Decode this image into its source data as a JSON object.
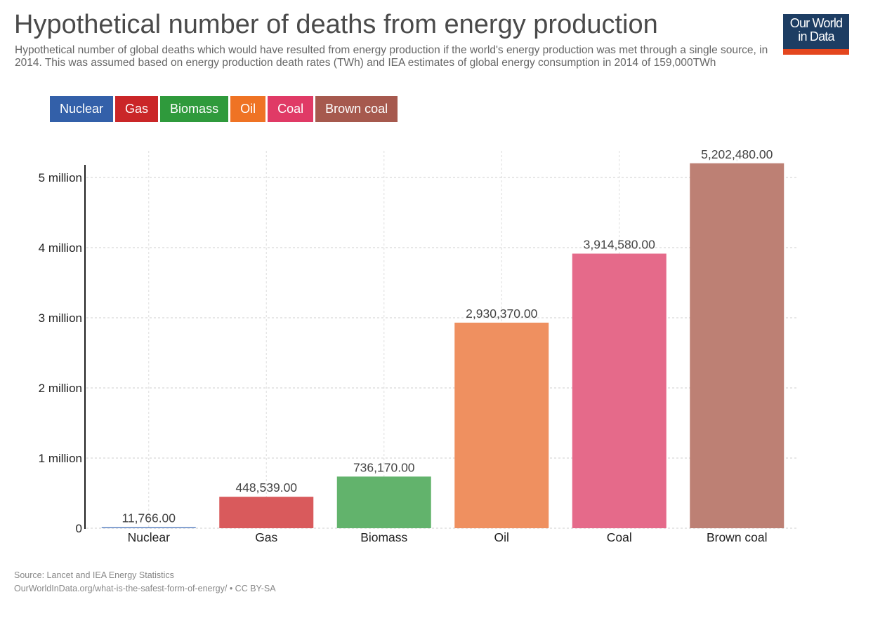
{
  "header": {
    "title": "Hypothetical number of deaths from energy production",
    "subtitle": "Hypothetical number of global deaths which would have resulted from energy production if the world's energy production was met through a single source, in 2014. This was assumed based on energy production death rates (TWh) and IEA estimates of global energy consumption in 2014 of 159,000TWh",
    "logo_line1": "Our World",
    "logo_line2": "in Data"
  },
  "colors": {
    "logo_bg": "#1d3d63",
    "logo_accent": "#e4461e"
  },
  "legend": [
    {
      "label": "Nuclear",
      "color": "#3360a9"
    },
    {
      "label": "Gas",
      "color": "#ca2628"
    },
    {
      "label": "Biomass",
      "color": "#2f9a3c"
    },
    {
      "label": "Oil",
      "color": "#ef7324"
    },
    {
      "label": "Coal",
      "color": "#e03a66"
    },
    {
      "label": "Brown coal",
      "color": "#a6594e"
    }
  ],
  "footer": {
    "source": "Source: Lancet and IEA Energy Statistics",
    "link": "OurWorldInData.org/what-is-the-safest-form-of-energy/ • CC BY-SA"
  },
  "chart_data": {
    "type": "bar",
    "title": "Hypothetical number of deaths from energy production",
    "xlabel": "",
    "ylabel": "",
    "categories": [
      "Nuclear",
      "Gas",
      "Biomass",
      "Oil",
      "Coal",
      "Brown coal"
    ],
    "values": [
      11766,
      448539,
      736170,
      2930370,
      3914580,
      5202480
    ],
    "value_labels": [
      "11,766.00",
      "448,539.00",
      "736,170.00",
      "2,930,370.00",
      "3,914,580.00",
      "5,202,480.00"
    ],
    "bar_colors": [
      "#5b82c2",
      "#d95a5c",
      "#62b36c",
      "#ef9060",
      "#e56a8a",
      "#bd8074"
    ],
    "ylim": [
      0,
      5200000
    ],
    "yticks": [
      0,
      1000000,
      2000000,
      3000000,
      4000000,
      5000000
    ],
    "ytick_labels": [
      "0",
      "1 million",
      "2 million",
      "3 million",
      "4 million",
      "5 million"
    ],
    "grid": true,
    "legend_position": "top-left"
  }
}
